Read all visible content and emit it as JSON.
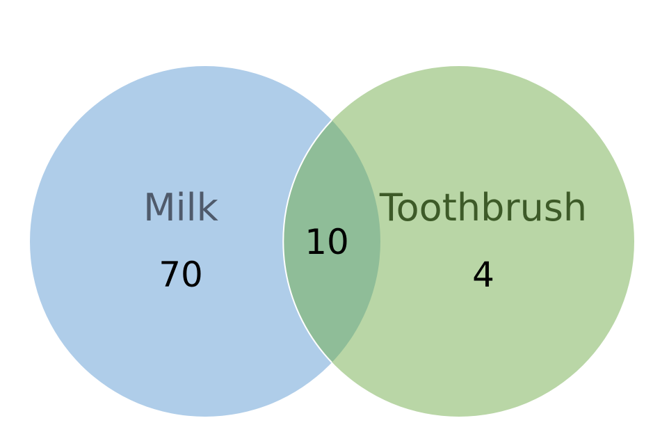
{
  "sets": [
    {
      "label": "Milk",
      "only_count": "70",
      "fill_color": "#afcde9",
      "label_color": "#4f5a6b"
    },
    {
      "label": "Toothbrush",
      "only_count": "4",
      "fill_color": "#b9d6a6",
      "label_color": "#3d5a28"
    }
  ],
  "intersection": {
    "count": "10",
    "fill_color": "#8fbd98"
  },
  "border_color": "#ffffff"
}
